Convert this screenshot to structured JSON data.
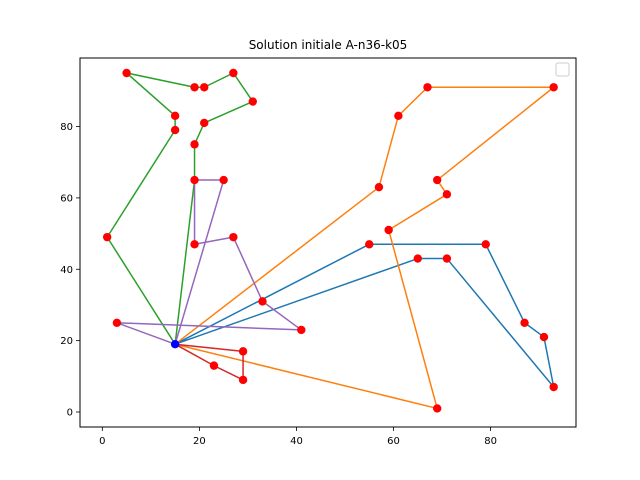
{
  "chart_data": {
    "type": "scatter",
    "title": "Solution initiale A-n36-k05",
    "xlabel": "",
    "ylabel": "",
    "xlim": [
      -4.6,
      97.6
    ],
    "ylim": [
      -4.2,
      99.2
    ],
    "xticks": [
      0,
      20,
      40,
      60,
      80
    ],
    "yticks": [
      0,
      20,
      40,
      60,
      80
    ],
    "grid": false,
    "legend": "top-right",
    "legend_entries": [],
    "depot": {
      "x": 15,
      "y": 19,
      "color": "#0000ff"
    },
    "customer_color": "#ff0000",
    "routes": [
      {
        "color": "#1f77b4",
        "points": [
          [
            15,
            19
          ],
          [
            55,
            47
          ],
          [
            79,
            47
          ],
          [
            87,
            25
          ],
          [
            91,
            21
          ],
          [
            93,
            7
          ],
          [
            71,
            43
          ],
          [
            65,
            43
          ],
          [
            15,
            19
          ]
        ]
      },
      {
        "color": "#ff7f0e",
        "points": [
          [
            15,
            19
          ],
          [
            57,
            63
          ],
          [
            61,
            83
          ],
          [
            67,
            91
          ],
          [
            93,
            91
          ],
          [
            69,
            65
          ],
          [
            71,
            61
          ],
          [
            59,
            51
          ],
          [
            69,
            1
          ],
          [
            15,
            19
          ]
        ]
      },
      {
        "color": "#2ca02c",
        "points": [
          [
            15,
            19
          ],
          [
            1,
            49
          ],
          [
            15,
            79
          ],
          [
            15,
            83
          ],
          [
            5,
            95
          ],
          [
            19,
            91
          ],
          [
            21,
            91
          ],
          [
            27,
            95
          ],
          [
            31,
            87
          ],
          [
            21,
            81
          ],
          [
            19,
            75
          ],
          [
            19,
            65
          ],
          [
            15,
            19
          ]
        ]
      },
      {
        "color": "#d62728",
        "points": [
          [
            15,
            19
          ],
          [
            29,
            17
          ],
          [
            29,
            9
          ],
          [
            23,
            13
          ],
          [
            15,
            19
          ]
        ]
      },
      {
        "color": "#9467bd",
        "points": [
          [
            15,
            19
          ],
          [
            25,
            65
          ],
          [
            19,
            65
          ],
          [
            19,
            47
          ],
          [
            27,
            49
          ],
          [
            33,
            31
          ],
          [
            41,
            23
          ],
          [
            3,
            25
          ],
          [
            15,
            19
          ]
        ]
      }
    ]
  }
}
